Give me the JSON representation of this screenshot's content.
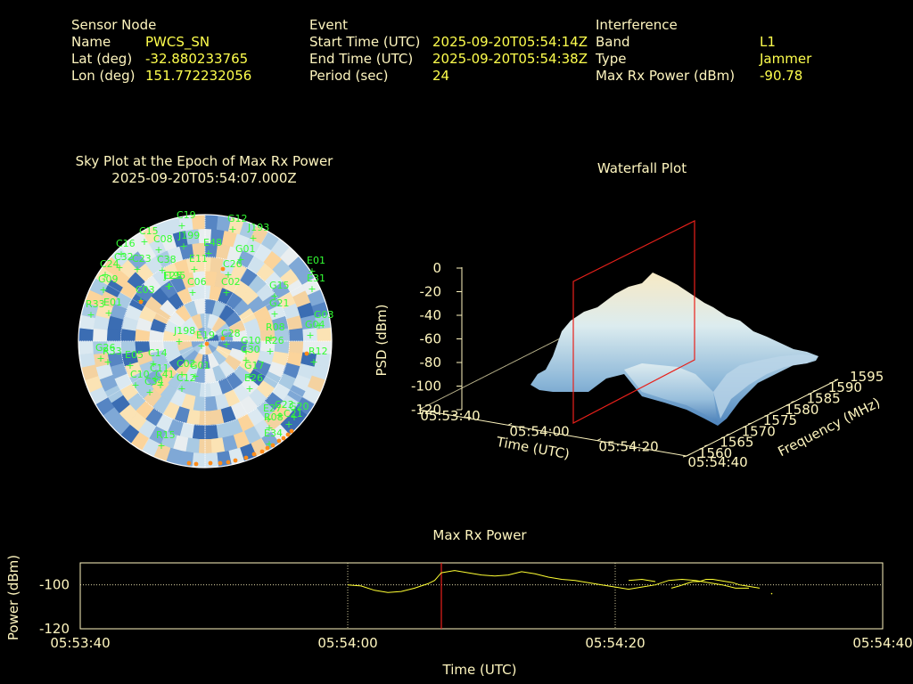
{
  "header": {
    "sensor": {
      "title": "Sensor Node",
      "name_label": "Name",
      "name": "PWCS_SN",
      "lat_label": "Lat (deg)",
      "lat": "-32.880233765",
      "lon_label": "Lon (deg)",
      "lon": "151.772232056"
    },
    "event": {
      "title": "Event",
      "start_label": "Start Time (UTC)",
      "start": "2025-09-20T05:54:14Z",
      "end_label": "End Time (UTC)",
      "end": "2025-09-20T05:54:38Z",
      "period_label": "Period (sec)",
      "period": "24"
    },
    "interference": {
      "title": "Interference",
      "band_label": "Band",
      "band": "L1",
      "type_label": "Type",
      "type": "Jammer",
      "power_label": "Max Rx Power (dBm)",
      "power": "-90.78"
    }
  },
  "colors": {
    "background": "#000000",
    "header_text": "#fff6bf",
    "value_text": "#ffff4d",
    "satellite": "#33ff33",
    "marker": "#ff8c1a",
    "epoch_line": "#e8201a",
    "power_line": "#ffff33",
    "warm": "#fbe3b4",
    "cool": "#3b6db3"
  },
  "chart_data": [
    {
      "type": "scatter",
      "title": "Sky Plot at the Epoch of Max Rx Power",
      "subtitle": "2025-09-20T05:54:07.000Z",
      "projection": "polar",
      "background": "heatmap",
      "satellites": [
        "C19",
        "G12",
        "E01",
        "J193",
        "C15",
        "C08",
        "J199",
        "C16",
        "E48",
        "C32",
        "C23",
        "C38",
        "G01",
        "C24",
        "C26",
        "E11",
        "G09",
        "E25",
        "E31",
        "C03",
        "J195",
        "C06",
        "C02",
        "E01",
        "G15",
        "G21",
        "G03",
        "G04",
        "J198",
        "R08",
        "R26",
        "C28",
        "E19",
        "G10",
        "G17",
        "R12",
        "E26",
        "G26",
        "R33",
        "E05",
        "C14",
        "C11",
        "C30",
        "C02",
        "R33",
        "C34",
        "G01",
        "C12",
        "E27",
        "C23",
        "R08",
        "C10",
        "C41",
        "G20",
        "C21",
        "E34",
        "R15"
      ],
      "elevation_rings": 3,
      "grid": true
    },
    {
      "type": "area",
      "title": "Waterfall Plot",
      "projection": "3d",
      "xlabel": "Time (UTC)",
      "ylabel": "Frequency (MHz)",
      "zlabel": "PSD (dBm)",
      "x_ticks": [
        "05:53:40",
        "05:54:00",
        "05:54:20",
        "05:54:40"
      ],
      "y_ticks": [
        "1560",
        "1565",
        "1570",
        "1575",
        "1580",
        "1585",
        "1590",
        "1595"
      ],
      "z_ticks": [
        "0",
        "-20",
        "-40",
        "-60",
        "-80",
        "-100",
        "-120"
      ],
      "zlim": [
        -120,
        0
      ],
      "epoch_plane": "2025-09-20T05:54:07Z"
    },
    {
      "type": "line",
      "title": "Max Rx Power",
      "xlabel": "Time (UTC)",
      "ylabel": "Power (dBm)",
      "x_ticks": [
        "05:53:40",
        "05:54:00",
        "05:54:20",
        "05:54:40"
      ],
      "y_ticks": [
        "-100",
        "-120"
      ],
      "xlim_sec": [
        0,
        60
      ],
      "ylim": [
        -120,
        -90
      ],
      "grid": true,
      "epoch_sec": 27,
      "series": [
        {
          "x": [
            20,
            21,
            22,
            23,
            24,
            25,
            26,
            26.5,
            27,
            28,
            29,
            30,
            31,
            32,
            33,
            34,
            35,
            36,
            37,
            38,
            39,
            40,
            41,
            42,
            43,
            44,
            45,
            46,
            47,
            48,
            49,
            50
          ],
          "y": [
            -100,
            -100.5,
            -102.5,
            -103.5,
            -103,
            -101.5,
            -99.5,
            -98,
            -94.5,
            -93.5,
            -94.5,
            -95.5,
            -96,
            -95.5,
            -94,
            -95,
            -96.5,
            -97.5,
            -98,
            -99,
            -100,
            -101,
            -102,
            -101,
            -100,
            -98,
            -97.5,
            -98,
            -99,
            -100,
            -101.5,
            -101.5
          ]
        },
        {
          "x": [
            41,
            42,
            43
          ],
          "y": [
            -98,
            -97.5,
            -98.5
          ]
        },
        {
          "x": [
            44.2,
            44.8,
            45.3,
            45.8,
            46.3,
            46.8,
            47.3,
            47.8,
            48.3,
            48.8,
            49.3,
            49.8,
            50.3,
            50.8
          ],
          "y": [
            -101.5,
            -100.5,
            -99.5,
            -98.5,
            -98.5,
            -97.5,
            -97.5,
            -98,
            -98.5,
            -99,
            -100,
            -100.5,
            -101,
            -101.5
          ]
        },
        {
          "x": [
            51.7
          ],
          "y": [
            -104
          ]
        }
      ]
    }
  ]
}
